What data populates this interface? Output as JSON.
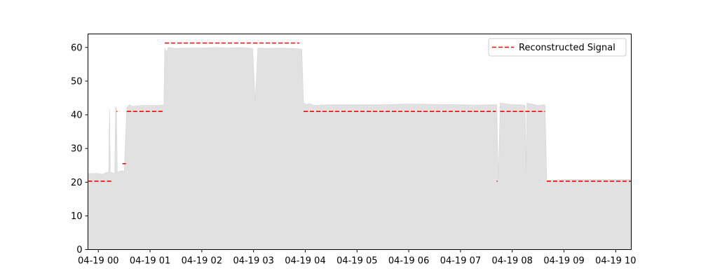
{
  "chart_data": {
    "type": "area",
    "title": "",
    "xlabel": "",
    "ylabel": "",
    "ylim": [
      0,
      64
    ],
    "xlim": [
      "04-18 23:48",
      "04-19 10:18"
    ],
    "grid": false,
    "legend_placement": "top-right",
    "x_ticks": [
      {
        "time": "04-19 00:00",
        "label": "04-19 00"
      },
      {
        "time": "04-19 01:00",
        "label": "04-19 01"
      },
      {
        "time": "04-19 02:00",
        "label": "04-19 02"
      },
      {
        "time": "04-19 03:00",
        "label": "04-19 03"
      },
      {
        "time": "04-19 04:00",
        "label": "04-19 04"
      },
      {
        "time": "04-19 05:00",
        "label": "04-19 05"
      },
      {
        "time": "04-19 06:00",
        "label": "04-19 06"
      },
      {
        "time": "04-19 07:00",
        "label": "04-19 07"
      },
      {
        "time": "04-19 08:00",
        "label": "04-19 08"
      },
      {
        "time": "04-19 09:00",
        "label": "04-19 09"
      },
      {
        "time": "04-19 10:00",
        "label": "04-19 10"
      }
    ],
    "y_ticks": [
      0,
      10,
      20,
      30,
      40,
      50,
      60
    ],
    "series": [
      {
        "kind": "area",
        "color": "#e0e1e0",
        "points": [
          [
            "04-18 23:48",
            22.6
          ],
          [
            "04-19 00:00",
            22.6
          ],
          [
            "04-19 00:05",
            22.3
          ],
          [
            "04-19 00:08",
            22.8
          ],
          [
            "04-19 00:12",
            23.0
          ],
          [
            "04-19 00:13",
            41.7
          ],
          [
            "04-19 00:14",
            23.0
          ],
          [
            "04-19 00:19",
            22.6
          ],
          [
            "04-19 00:20",
            42.5
          ],
          [
            "04-19 00:21",
            42.0
          ],
          [
            "04-19 00:22",
            23.0
          ],
          [
            "04-19 00:28",
            23.5
          ],
          [
            "04-19 00:30",
            23.0
          ],
          [
            "04-19 00:33",
            42.2
          ],
          [
            "04-19 00:36",
            43.0
          ],
          [
            "04-19 00:40",
            42.5
          ],
          [
            "04-19 00:50",
            42.8
          ],
          [
            "04-19 01:00",
            42.8
          ],
          [
            "04-19 01:10",
            42.8
          ],
          [
            "04-19 01:16",
            43.0
          ],
          [
            "04-19 01:17",
            59.8
          ],
          [
            "04-19 01:18",
            59.3
          ],
          [
            "04-19 01:19",
            58.5
          ],
          [
            "04-19 01:21",
            60.0
          ],
          [
            "04-19 01:30",
            59.7
          ],
          [
            "04-19 01:45",
            59.8
          ],
          [
            "04-19 02:00",
            59.8
          ],
          [
            "04-19 02:15",
            60.0
          ],
          [
            "04-19 02:30",
            59.8
          ],
          [
            "04-19 02:45",
            60.0
          ],
          [
            "04-19 02:59",
            59.7
          ],
          [
            "04-19 03:02",
            44.0
          ],
          [
            "04-19 03:05",
            59.8
          ],
          [
            "04-19 03:15",
            59.7
          ],
          [
            "04-19 03:30",
            59.8
          ],
          [
            "04-19 03:45",
            59.7
          ],
          [
            "04-19 03:56",
            59.5
          ],
          [
            "04-19 03:58",
            43.5
          ],
          [
            "04-19 04:02",
            43.0
          ],
          [
            "04-19 04:04",
            43.4
          ],
          [
            "04-19 04:10",
            42.8
          ],
          [
            "04-19 04:30",
            43.0
          ],
          [
            "04-19 05:00",
            43.0
          ],
          [
            "04-19 05:30",
            43.0
          ],
          [
            "04-19 06:00",
            43.2
          ],
          [
            "04-19 06:30",
            43.1
          ],
          [
            "04-19 07:00",
            43.0
          ],
          [
            "04-19 07:20",
            42.9
          ],
          [
            "04-19 07:42",
            43.0
          ],
          [
            "04-19 07:44",
            21.0
          ],
          [
            "04-19 07:46",
            43.5
          ],
          [
            "04-19 08:00",
            43.0
          ],
          [
            "04-19 08:10",
            43.0
          ],
          [
            "04-19 08:15",
            42.8
          ],
          [
            "04-19 08:16",
            23.0
          ],
          [
            "04-19 08:17",
            43.5
          ],
          [
            "04-19 08:30",
            42.8
          ],
          [
            "04-19 08:38",
            43.0
          ],
          [
            "04-19 08:40",
            20.5
          ],
          [
            "04-19 09:00",
            20.8
          ],
          [
            "04-19 09:30",
            20.8
          ],
          [
            "04-19 10:00",
            20.8
          ],
          [
            "04-19 10:18",
            20.8
          ]
        ]
      },
      {
        "name": "Reconstructed Signal",
        "kind": "step-dashed",
        "color": "#ff0000",
        "segments": [
          {
            "from": "04-18 23:48",
            "to": "04-19 00:16",
            "value": 20.3
          },
          {
            "from": "04-19 00:21",
            "to": "04-19 00:22",
            "value": 41.0
          },
          {
            "from": "04-19 00:28",
            "to": "04-19 00:32",
            "value": 25.5
          },
          {
            "from": "04-19 00:33",
            "to": "04-19 01:15",
            "value": 41.0
          },
          {
            "from": "04-19 01:17",
            "to": "04-19 03:53",
            "value": 61.3
          },
          {
            "from": "04-19 03:58",
            "to": "04-19 07:41",
            "value": 41.0
          },
          {
            "from": "04-19 07:42",
            "to": "04-19 07:43",
            "value": 20.3
          },
          {
            "from": "04-19 07:46",
            "to": "04-19 08:38",
            "value": 41.0
          },
          {
            "from": "04-19 08:40",
            "to": "04-19 10:18",
            "value": 20.3
          }
        ]
      }
    ]
  }
}
